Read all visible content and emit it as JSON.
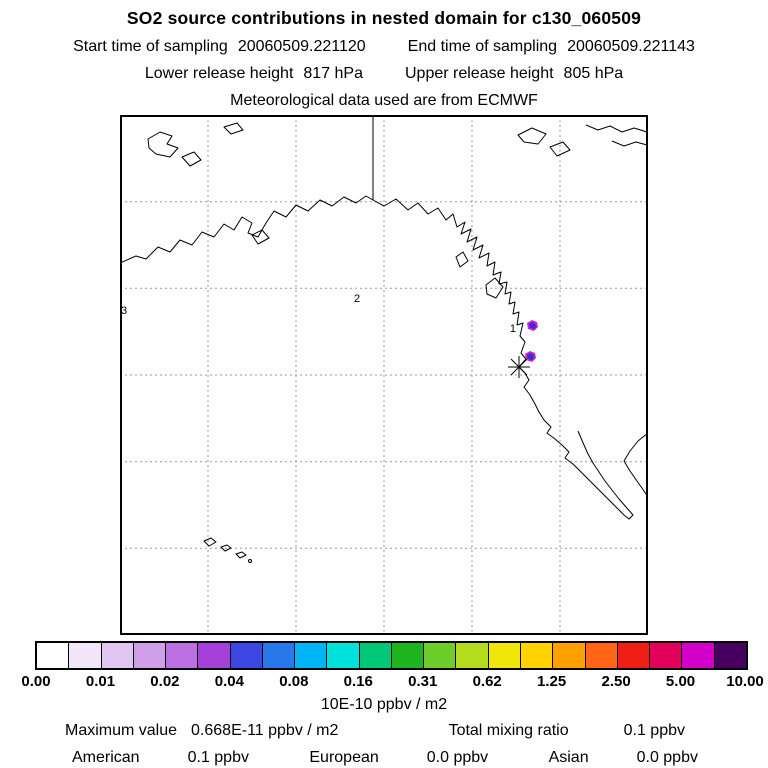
{
  "header": {
    "title": "SO2 source contributions in nested domain for c130_060509",
    "start": {
      "label": "Start time of sampling",
      "value": "20060509.221120"
    },
    "end": {
      "label": "End time of sampling",
      "value": "20060509.221143"
    },
    "lower": {
      "label": "Lower release height",
      "value": "817 hPa"
    },
    "upper": {
      "label": "Upper release height",
      "value": "805 hPa"
    },
    "met_source": "Meteorological data used are from ECMWF"
  },
  "map": {
    "markers": {
      "m1": "1",
      "m2": "2",
      "m3": "3"
    },
    "plume_color": "#3a2fd0",
    "plume_fringe": "#cf1fcf"
  },
  "colorbar": {
    "colors": [
      "#ffffff",
      "#f3e6fa",
      "#e2c6f2",
      "#cf9fe8",
      "#bc6fe0",
      "#a43fd8",
      "#3c46e0",
      "#2878ec",
      "#00b4f5",
      "#00e1dc",
      "#00c878",
      "#1eb41e",
      "#6ecd28",
      "#b4dc1e",
      "#f0e60a",
      "#ffd200",
      "#ffa000",
      "#ff6414",
      "#f01e14",
      "#e1005a",
      "#d200c8",
      "#46005f"
    ],
    "tick_labels": [
      "0.00",
      "0.01",
      "0.02",
      "0.04",
      "0.08",
      "0.16",
      "0.31",
      "0.62",
      "1.25",
      "2.50",
      "5.00",
      "10.00"
    ],
    "units": "10E-10 ppbv / m2"
  },
  "footer": {
    "max": {
      "label": "Maximum value",
      "value": "0.668E-11 ppbv / m2"
    },
    "total": {
      "label": "Total mixing ratio",
      "value": "0.1 ppbv"
    },
    "sources": [
      {
        "name": "American",
        "value": "0.1 ppbv"
      },
      {
        "name": "European",
        "value": "0.0 ppbv"
      },
      {
        "name": "Asian",
        "value": "0.0 ppbv"
      }
    ]
  },
  "chart_data": {
    "type": "heatmap",
    "title": "SO2 source contributions in nested domain for c130_060509",
    "subtitle": "Meteorological data used are from ECMWF",
    "start_time": "20060509.221120",
    "end_time": "20060509.221143",
    "lower_release_height_hPa": 817,
    "upper_release_height_hPa": 805,
    "colorbar_scale": [
      0.0,
      0.01,
      0.02,
      0.04,
      0.08,
      0.16,
      0.31,
      0.62,
      1.25,
      2.5,
      5.0,
      10.0
    ],
    "units": "10E-10 ppbv / m2",
    "maximum_value": "0.668E-11 ppbv / m2",
    "total_mixing_ratio": "0.1 ppbv",
    "source_contributions": [
      {
        "region": "American",
        "mixing_ratio": "0.1 ppbv"
      },
      {
        "region": "European",
        "mixing_ratio": "0.0 ppbv"
      },
      {
        "region": "Asian",
        "mixing_ratio": "0.0 ppbv"
      }
    ],
    "layout": {
      "grid": "dashed 6x6",
      "legend_position": "bottom colorbar",
      "map_region": "NE Pacific / western North America"
    }
  }
}
